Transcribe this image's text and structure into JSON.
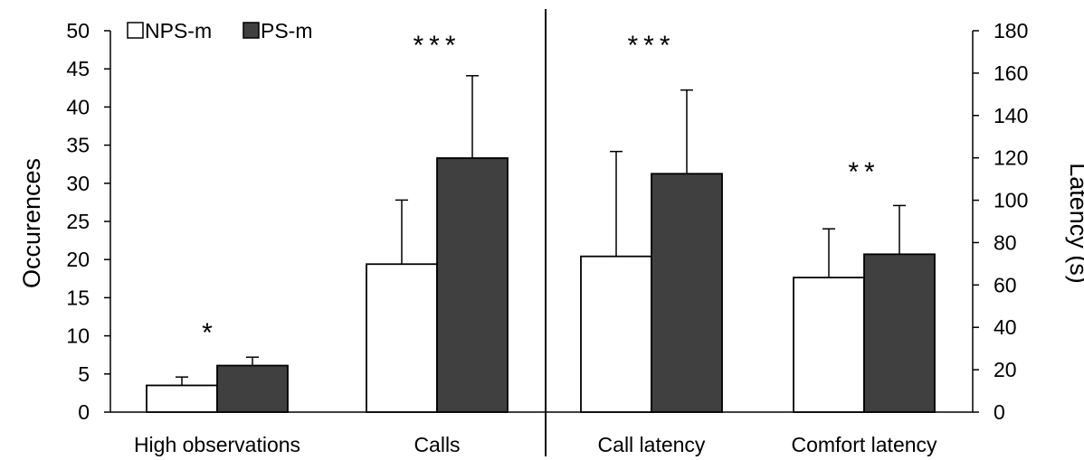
{
  "chart_data": {
    "type": "bar",
    "legend": {
      "placement": "top-left",
      "entries": [
        {
          "name": "NPS-m",
          "color": "#ffffff"
        },
        {
          "name": "PS-m",
          "color": "#404040"
        }
      ]
    },
    "left_axis": {
      "label": "Occurences",
      "ylim": [
        0,
        50
      ],
      "ticks": [
        "0",
        "5",
        "10",
        "15",
        "20",
        "25",
        "30",
        "35",
        "40",
        "45",
        "50"
      ]
    },
    "right_axis": {
      "label": "Latency (s)",
      "ylim": [
        0,
        180
      ],
      "ticks": [
        "0",
        "20",
        "40",
        "60",
        "80",
        "100",
        "120",
        "140",
        "160",
        "180"
      ]
    },
    "groups": [
      {
        "category": "High observations",
        "axis": "left",
        "NPS-m": 3.5,
        "NPS-m_err": 1.1,
        "PS-m": 6.1,
        "PS-m_err": 1.1,
        "significance": "*"
      },
      {
        "category": "Calls",
        "axis": "left",
        "NPS-m": 19.4,
        "NPS-m_err": 8.4,
        "PS-m": 33.3,
        "PS-m_err": 10.8,
        "significance": "***"
      },
      {
        "category": "Call latency",
        "axis": "right",
        "NPS-m": 73.5,
        "NPS-m_err": 49.5,
        "PS-m": 112.5,
        "PS-m_err": 39.5,
        "significance": "***"
      },
      {
        "category": "Comfort latency",
        "axis": "right",
        "NPS-m": 63.5,
        "NPS-m_err": 23.0,
        "PS-m": 74.5,
        "PS-m_err": 23.0,
        "significance": "**"
      }
    ],
    "grid": false
  }
}
